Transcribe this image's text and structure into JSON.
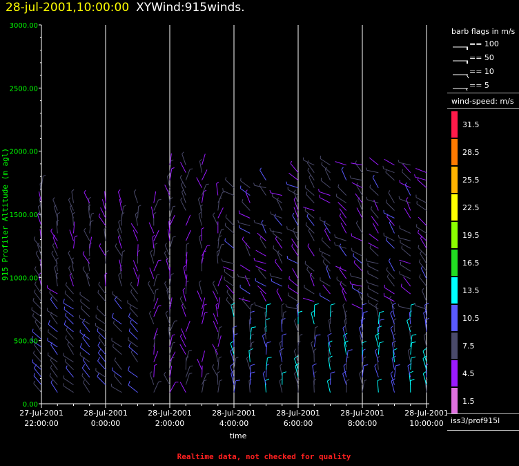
{
  "title": {
    "datetime": "28-jul-2001,10:00:00",
    "product": "XYWind:915winds."
  },
  "footer": "Realtime data, not checked for quality",
  "legend": {
    "barb_heading": "barb flags in m/s",
    "barb_items": [
      {
        "value": 100,
        "label": "== 100"
      },
      {
        "value": 50,
        "label": "== 50"
      },
      {
        "value": 10,
        "label": "== 10"
      },
      {
        "value": 5,
        "label": "== 5"
      }
    ],
    "speed_heading": "wind-speed: m/s",
    "speed_scale": [
      {
        "label": "31.5",
        "color": "#ff1a4a"
      },
      {
        "label": "28.5",
        "color": "#ff7a00"
      },
      {
        "label": "25.5",
        "color": "#ffb400"
      },
      {
        "label": "22.5",
        "color": "#ffff00"
      },
      {
        "label": "19.5",
        "color": "#8cff00"
      },
      {
        "label": "16.5",
        "color": "#22dd22"
      },
      {
        "label": "13.5",
        "color": "#00ffff"
      },
      {
        "label": "10.5",
        "color": "#5a5aff"
      },
      {
        "label": "7.5",
        "color": "#4a4a6a"
      },
      {
        "label": "4.5",
        "color": "#9b1aff"
      },
      {
        "label": "1.5",
        "color": "#e070e0"
      }
    ],
    "source": "iss3/prof915l"
  },
  "chart_data": {
    "type": "wind-barb time-height",
    "ylabel": "915 Profiler Altitude (m agl)",
    "xlabel": "time",
    "ylim": [
      0,
      3000
    ],
    "yticks": [
      "0.00",
      "500.00",
      "1000.00",
      "1500.00",
      "2000.00",
      "2500.00",
      "3000.00"
    ],
    "xticks": [
      {
        "line1": "27-Jul-2001",
        "line2": "22:00:00"
      },
      {
        "line1": "28-Jul-2001",
        "line2": "0:00:00"
      },
      {
        "line1": "28-Jul-2001",
        "line2": "2:00:00"
      },
      {
        "line1": "28-Jul-2001",
        "line2": "4:00:00"
      },
      {
        "line1": "28-Jul-2001",
        "line2": "6:00:00"
      },
      {
        "line1": "28-Jul-2001",
        "line2": "8:00:00"
      },
      {
        "line1": "28-Jul-2001",
        "line2": "10:00:00"
      }
    ],
    "xrange_hours": [
      0,
      12
    ],
    "profile_interval_minutes": 30,
    "gate_spacing_m": 60,
    "grid": "vertical lines at profile hours",
    "colors": {
      "axis": "#ffffff",
      "y_tick_text": "#00ff00",
      "grid": "#ffffff"
    }
  }
}
